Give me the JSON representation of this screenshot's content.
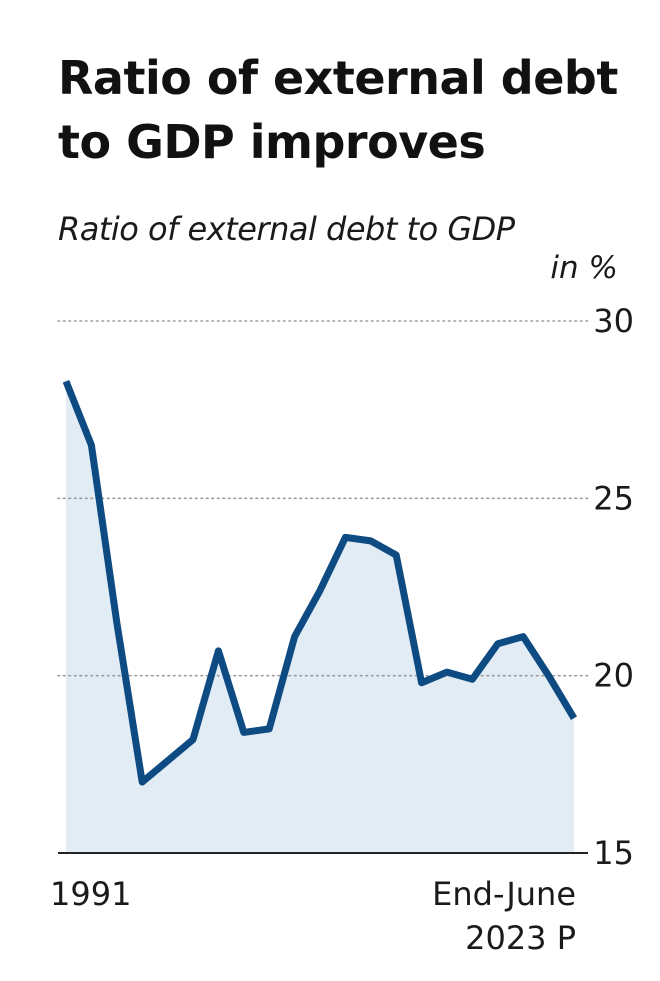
{
  "header": {
    "title": "Ratio of external debt to GDP improves",
    "subtitle": "Ratio of external debt to GDP",
    "unit": "in %"
  },
  "colors": {
    "line": "#0e4b83",
    "area": "#e1ecf5",
    "grid": "#9a9a9a",
    "axis": "#222222"
  },
  "chart_data": {
    "type": "area",
    "x_start_label": "1991",
    "x_end_label_line1": "End-June",
    "x_end_label_line2": "2023 P",
    "values": [
      28.3,
      26.5,
      21.5,
      17.0,
      17.6,
      18.2,
      20.7,
      18.4,
      18.5,
      21.1,
      22.4,
      23.9,
      23.8,
      23.4,
      19.8,
      20.1,
      19.9,
      20.9,
      21.1,
      20.0,
      18.8
    ],
    "ylim": [
      15,
      30
    ],
    "yticks": [
      15,
      20,
      25,
      30
    ],
    "grid": true,
    "y_axis_side": "right"
  }
}
